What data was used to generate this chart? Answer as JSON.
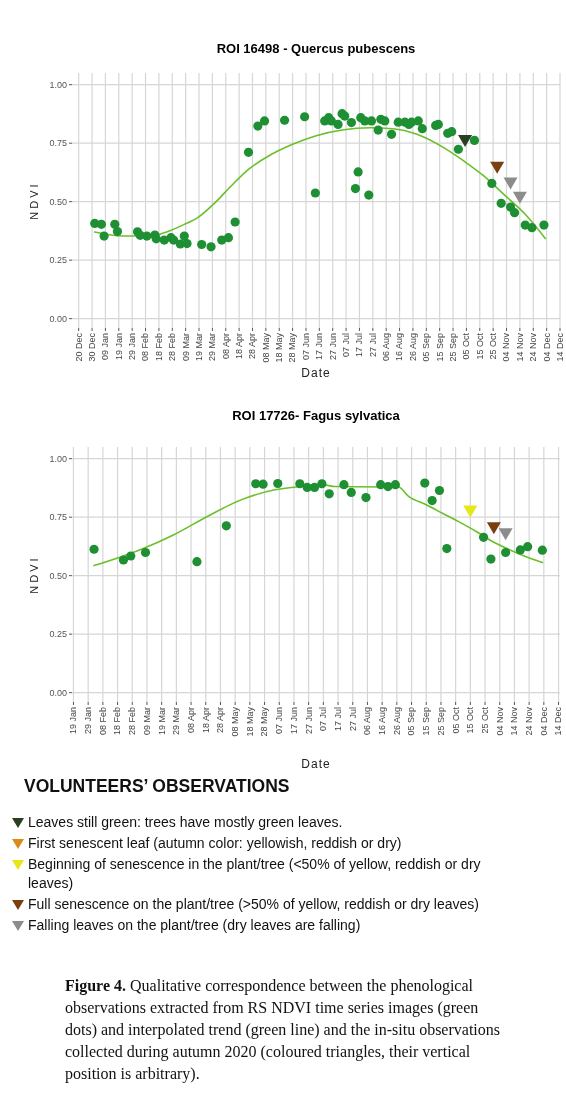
{
  "chart_data": [
    {
      "type": "scatter",
      "title": "ROI 16498 -  Quercus pubescens",
      "xlabel": "Date",
      "ylabel": "NDVI",
      "grid": true,
      "marker": "circle",
      "xlim": [
        "2019-12-15",
        "2020-12-14"
      ],
      "xticks": [
        {
          "value": "2019-12-20",
          "label": "20 Dec"
        },
        {
          "value": "2019-12-30",
          "label": "30 Dec"
        },
        {
          "value": "2020-01-09",
          "label": "09 Jan"
        },
        {
          "value": "2020-01-19",
          "label": "19 Jan"
        },
        {
          "value": "2020-01-29",
          "label": "29 Jan"
        },
        {
          "value": "2020-02-08",
          "label": "08 Feb"
        },
        {
          "value": "2020-02-18",
          "label": "18 Feb"
        },
        {
          "value": "2020-02-28",
          "label": "28 Feb"
        },
        {
          "value": "2020-03-09",
          "label": "09 Mar"
        },
        {
          "value": "2020-03-19",
          "label": "19 Mar"
        },
        {
          "value": "2020-03-29",
          "label": "29 Mar"
        },
        {
          "value": "2020-04-08",
          "label": "08 Apr"
        },
        {
          "value": "2020-04-18",
          "label": "18 Apr"
        },
        {
          "value": "2020-04-28",
          "label": "28 Apr"
        },
        {
          "value": "2020-05-08",
          "label": "08 May"
        },
        {
          "value": "2020-05-18",
          "label": "18 May"
        },
        {
          "value": "2020-05-28",
          "label": "28 May"
        },
        {
          "value": "2020-06-07",
          "label": "07 Jun"
        },
        {
          "value": "2020-06-17",
          "label": "17 Jun"
        },
        {
          "value": "2020-06-27",
          "label": "27 Jun"
        },
        {
          "value": "2020-07-07",
          "label": "07 Jul"
        },
        {
          "value": "2020-07-17",
          "label": "17 Jul"
        },
        {
          "value": "2020-07-27",
          "label": "27 Jul"
        },
        {
          "value": "2020-08-06",
          "label": "06 Aug"
        },
        {
          "value": "2020-08-16",
          "label": "16 Aug"
        },
        {
          "value": "2020-08-26",
          "label": "26 Aug"
        },
        {
          "value": "2020-09-05",
          "label": "05 Sep"
        },
        {
          "value": "2020-09-15",
          "label": "15 Sep"
        },
        {
          "value": "2020-09-25",
          "label": "25 Sep"
        },
        {
          "value": "2020-10-05",
          "label": "05 Oct"
        },
        {
          "value": "2020-10-15",
          "label": "15 Oct"
        },
        {
          "value": "2020-10-25",
          "label": "25 Oct"
        },
        {
          "value": "2020-11-04",
          "label": "04 Nov"
        },
        {
          "value": "2020-11-14",
          "label": "14 Nov"
        },
        {
          "value": "2020-11-24",
          "label": "24 Nov"
        },
        {
          "value": "2020-12-04",
          "label": "04 Dec"
        },
        {
          "value": "2020-12-14",
          "label": "14 Dec"
        }
      ],
      "ylim": [
        -0.04,
        1.05
      ],
      "yticks": [
        {
          "value": 0,
          "label": "0.00"
        },
        {
          "value": 0.25,
          "label": "0.25"
        },
        {
          "value": 0.5,
          "label": "0.50"
        },
        {
          "value": 0.75,
          "label": "0.75"
        },
        {
          "value": 1,
          "label": "1.00"
        }
      ],
      "series": [
        {
          "type": "scatter",
          "color": "#1e8f32",
          "x": [
            "2020-01-01",
            "2020-01-06",
            "2020-01-08",
            "2020-01-16",
            "2020-01-18",
            "2020-02-02",
            "2020-02-04",
            "2020-02-09",
            "2020-02-15",
            "2020-02-16",
            "2020-02-22",
            "2020-02-27",
            "2020-02-29",
            "2020-03-05",
            "2020-03-08",
            "2020-03-10",
            "2020-03-21",
            "2020-03-28",
            "2020-04-05",
            "2020-04-10",
            "2020-04-15",
            "2020-04-25",
            "2020-05-02",
            "2020-05-07",
            "2020-05-22",
            "2020-06-06",
            "2020-06-14",
            "2020-06-21",
            "2020-06-24",
            "2020-06-26",
            "2020-07-01",
            "2020-07-04",
            "2020-07-06",
            "2020-07-11",
            "2020-07-14",
            "2020-07-16",
            "2020-07-18",
            "2020-07-21",
            "2020-07-24",
            "2020-07-26",
            "2020-07-31",
            "2020-08-02",
            "2020-08-05",
            "2020-08-10",
            "2020-08-15",
            "2020-08-20",
            "2020-08-23",
            "2020-08-25",
            "2020-08-30",
            "2020-09-02",
            "2020-09-12",
            "2020-09-14",
            "2020-09-21",
            "2020-09-24",
            "2020-09-29",
            "2020-10-11",
            "2020-10-24",
            "2020-10-31",
            "2020-11-07",
            "2020-11-10",
            "2020-11-18",
            "2020-11-23",
            "2020-12-02"
          ],
          "values": [
            0.407,
            0.403,
            0.353,
            0.403,
            0.372,
            0.371,
            0.356,
            0.353,
            0.357,
            0.341,
            0.336,
            0.346,
            0.336,
            0.319,
            0.353,
            0.321,
            0.317,
            0.307,
            0.336,
            0.346,
            0.413,
            0.711,
            0.823,
            0.845,
            0.848,
            0.863,
            0.537,
            0.845,
            0.859,
            0.845,
            0.83,
            0.876,
            0.866,
            0.838,
            0.556,
            0.627,
            0.859,
            0.845,
            0.528,
            0.845,
            0.806,
            0.852,
            0.845,
            0.788,
            0.84,
            0.84,
            0.83,
            0.84,
            0.845,
            0.812,
            0.826,
            0.83,
            0.792,
            0.799,
            0.724,
            0.762,
            0.578,
            0.493,
            0.477,
            0.453,
            0.4,
            0.389,
            0.4
          ]
        },
        {
          "type": "line",
          "marker": "none",
          "color": "#6abf2a",
          "x": [
            "2020-01-01",
            "2020-01-22",
            "2020-02-12",
            "2020-02-22",
            "2020-03-08",
            "2020-03-18",
            "2020-03-31",
            "2020-04-12",
            "2020-04-25",
            "2020-05-10",
            "2020-05-28",
            "2020-06-14",
            "2020-07-04",
            "2020-07-25",
            "2020-08-11",
            "2020-08-29",
            "2020-09-18",
            "2020-10-03",
            "2020-10-18",
            "2020-11-02",
            "2020-11-18",
            "2020-12-03"
          ],
          "values": [
            0.37,
            0.353,
            0.353,
            0.367,
            0.403,
            0.432,
            0.496,
            0.567,
            0.638,
            0.695,
            0.745,
            0.781,
            0.806,
            0.816,
            0.812,
            0.788,
            0.731,
            0.674,
            0.61,
            0.531,
            0.446,
            0.343
          ]
        },
        {
          "type": "scatter",
          "marker": "triangle",
          "color": "#2a3f22",
          "x": [
            "2020-10-04"
          ],
          "values": [
            0.759
          ]
        },
        {
          "type": "scatter",
          "marker": "triangle",
          "color": "#7a3f0e",
          "x": [
            "2020-10-28"
          ],
          "values": [
            0.645
          ]
        },
        {
          "type": "scatter",
          "marker": "triangle",
          "color": "#8c8c8c",
          "x": [
            "2020-11-07",
            "2020-11-14"
          ],
          "values": [
            0.578,
            0.517
          ]
        }
      ]
    },
    {
      "type": "scatter",
      "title": "ROI 17726-  Fagus sylvatica",
      "xlabel": "Date",
      "ylabel": "NDVI",
      "grid": true,
      "marker": "circle",
      "xlim": [
        "2020-01-18",
        "2020-12-15"
      ],
      "xticks": [
        {
          "value": "2020-01-19",
          "label": "19 Jan"
        },
        {
          "value": "2020-01-29",
          "label": "29 Jan"
        },
        {
          "value": "2020-02-08",
          "label": "08 Feb"
        },
        {
          "value": "2020-02-18",
          "label": "18 Feb"
        },
        {
          "value": "2020-02-28",
          "label": "28 Feb"
        },
        {
          "value": "2020-03-09",
          "label": "09 Mar"
        },
        {
          "value": "2020-03-19",
          "label": "19 Mar"
        },
        {
          "value": "2020-03-29",
          "label": "29 Mar"
        },
        {
          "value": "2020-04-08",
          "label": "08 Apr"
        },
        {
          "value": "2020-04-18",
          "label": "18 Apr"
        },
        {
          "value": "2020-04-28",
          "label": "28 Apr"
        },
        {
          "value": "2020-05-08",
          "label": "08 May"
        },
        {
          "value": "2020-05-18",
          "label": "18 May"
        },
        {
          "value": "2020-05-28",
          "label": "28 May"
        },
        {
          "value": "2020-06-07",
          "label": "07 Jun"
        },
        {
          "value": "2020-06-17",
          "label": "17 Jun"
        },
        {
          "value": "2020-06-27",
          "label": "27 Jun"
        },
        {
          "value": "2020-07-07",
          "label": "07 Jul"
        },
        {
          "value": "2020-07-17",
          "label": "17 Jul"
        },
        {
          "value": "2020-07-27",
          "label": "27 Jul"
        },
        {
          "value": "2020-08-06",
          "label": "06 Aug"
        },
        {
          "value": "2020-08-16",
          "label": "16 Aug"
        },
        {
          "value": "2020-08-26",
          "label": "26 Aug"
        },
        {
          "value": "2020-09-05",
          "label": "05 Sep"
        },
        {
          "value": "2020-09-15",
          "label": "15 Sep"
        },
        {
          "value": "2020-09-25",
          "label": "25 Sep"
        },
        {
          "value": "2020-10-05",
          "label": "05 Oct"
        },
        {
          "value": "2020-10-15",
          "label": "15 Oct"
        },
        {
          "value": "2020-10-25",
          "label": "25 Oct"
        },
        {
          "value": "2020-11-04",
          "label": "04 Nov"
        },
        {
          "value": "2020-11-14",
          "label": "14 Nov"
        },
        {
          "value": "2020-11-24",
          "label": "24 Nov"
        },
        {
          "value": "2020-12-04",
          "label": "04 Dec"
        },
        {
          "value": "2020-12-14",
          "label": "14 Dec"
        }
      ],
      "ylim": [
        -0.04,
        1.05
      ],
      "yticks": [
        {
          "value": 0,
          "label": "0.00"
        },
        {
          "value": 0.25,
          "label": "0.25"
        },
        {
          "value": 0.5,
          "label": "0.50"
        },
        {
          "value": 0.75,
          "label": "0.75"
        },
        {
          "value": 1,
          "label": "1.00"
        }
      ],
      "series": [
        {
          "type": "scatter",
          "color": "#1e8f32",
          "x": [
            "2020-02-02",
            "2020-02-22",
            "2020-02-27",
            "2020-03-08",
            "2020-04-12",
            "2020-05-02",
            "2020-05-22",
            "2020-05-27",
            "2020-06-06",
            "2020-06-21",
            "2020-06-26",
            "2020-07-01",
            "2020-07-06",
            "2020-07-11",
            "2020-07-21",
            "2020-07-26",
            "2020-08-05",
            "2020-08-15",
            "2020-08-20",
            "2020-08-25",
            "2020-09-14",
            "2020-09-19",
            "2020-09-24",
            "2020-09-29",
            "2020-10-24",
            "2020-10-29",
            "2020-11-08",
            "2020-11-18",
            "2020-11-23",
            "2020-12-03"
          ],
          "values": [
            0.613,
            0.567,
            0.584,
            0.599,
            0.56,
            0.713,
            0.893,
            0.891,
            0.894,
            0.893,
            0.877,
            0.877,
            0.893,
            0.85,
            0.889,
            0.856,
            0.834,
            0.889,
            0.881,
            0.889,
            0.896,
            0.821,
            0.864,
            0.616,
            0.664,
            0.571,
            0.599,
            0.61,
            0.624,
            0.609
          ]
        },
        {
          "type": "line",
          "marker": "none",
          "color": "#6abf2a",
          "x": [
            "2020-02-02",
            "2020-03-04",
            "2020-03-27",
            "2020-04-19",
            "2020-05-12",
            "2020-06-04",
            "2020-06-21",
            "2020-07-06",
            "2020-07-15",
            "2020-08-15",
            "2020-08-27",
            "2020-09-03",
            "2020-09-15",
            "2020-09-26",
            "2020-10-07",
            "2020-10-19",
            "2020-10-30",
            "2020-11-11",
            "2020-11-22",
            "2020-12-03"
          ],
          "values": [
            0.543,
            0.61,
            0.674,
            0.753,
            0.824,
            0.867,
            0.881,
            0.889,
            0.881,
            0.879,
            0.879,
            0.839,
            0.803,
            0.767,
            0.731,
            0.689,
            0.646,
            0.61,
            0.581,
            0.556
          ]
        },
        {
          "type": "scatter",
          "marker": "triangle",
          "color": "#e6e619",
          "x": [
            "2020-10-15"
          ],
          "values": [
            0.774
          ]
        },
        {
          "type": "scatter",
          "marker": "triangle",
          "color": "#7a3f0e",
          "x": [
            "2020-10-31"
          ],
          "values": [
            0.703
          ]
        },
        {
          "type": "scatter",
          "marker": "triangle",
          "color": "#8c8c8c",
          "x": [
            "2020-11-08"
          ],
          "values": [
            0.677
          ]
        }
      ]
    },
    {
      "type": "other",
      "title": "VOLUNTEERS’ OBSERVATIONS",
      "colors": [
        "#2a3f22",
        "#d98c1a",
        "#e6e619",
        "#7a3f0e",
        "#8c8c8c"
      ],
      "annotations": [
        "Leaves still green:  trees have mostly green leaves.",
        "First senescent leaf (autumn color: yellowish, reddish or dry)",
        "Beginning of senescence in the plant/tree (<50% of yellow, reddish or dry leaves)",
        "Full senescence on the plant/tree (>50% of yellow, reddish or dry leaves)",
        "Falling leaves on the plant/tree (dry leaves are falling)",
        "Figure 4.",
        "Qualitative correspondence between the phenological observations extracted from RS NDVI time series images (green dots) and interpolated trend (green line) and the in-situ observations collected during autumn 2020 (coloured triangles, their vertical position is arbitrary)."
      ]
    }
  ]
}
